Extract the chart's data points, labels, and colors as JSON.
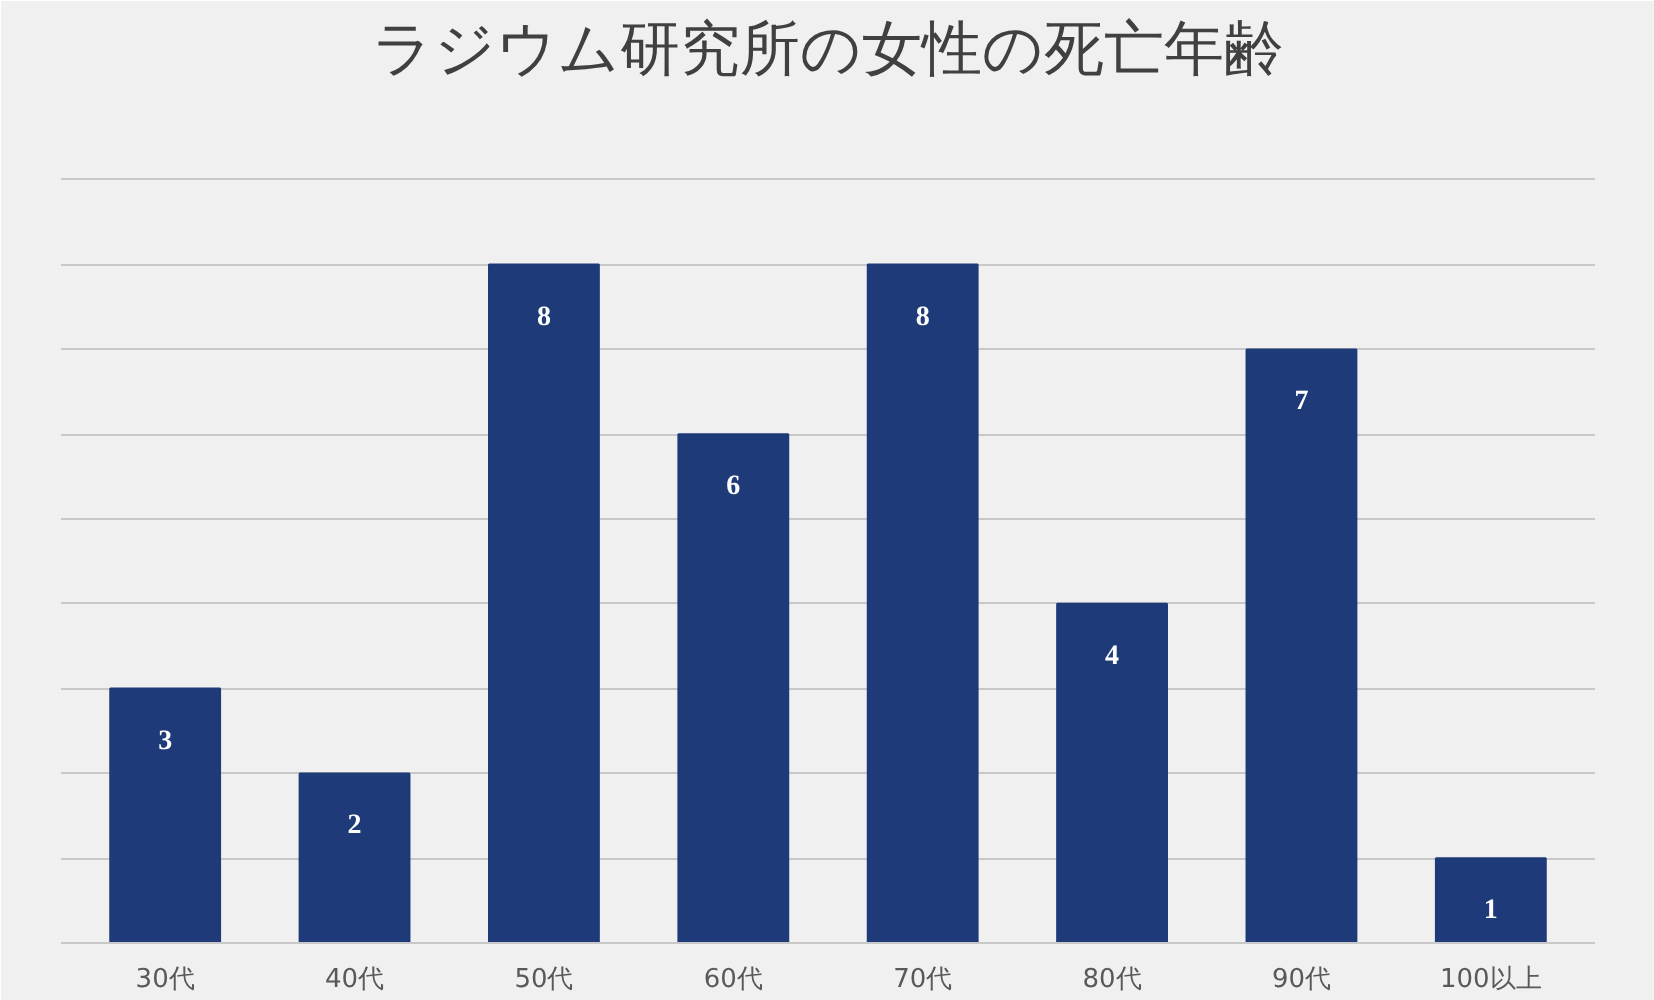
{
  "chart_data": {
    "type": "bar",
    "title": "ラジウム研究所の女性の死亡年齢",
    "categories": [
      "30代",
      "40代",
      "50代",
      "60代",
      "70代",
      "80代",
      "90代",
      "100以上"
    ],
    "values": [
      3,
      2,
      8,
      6,
      8,
      4,
      7,
      1
    ],
    "color": "#1f3a78",
    "ylim": [
      0,
      10
    ],
    "yticks": [
      {
        "value": 0,
        "label": null
      },
      {
        "value": 1,
        "label": null
      },
      {
        "value": 2,
        "label": null
      },
      {
        "value": 3,
        "label": null
      },
      {
        "value": 4,
        "label": null
      },
      {
        "value": 5,
        "label": null
      },
      {
        "value": 6,
        "label": null
      },
      {
        "value": 7,
        "label": null
      },
      {
        "value": 8,
        "label": null
      },
      {
        "value": 9,
        "label": null
      },
      {
        "value": 10,
        "label": null
      }
    ],
    "grid": "y",
    "tick_labels": "x",
    "data_labels": true
  }
}
